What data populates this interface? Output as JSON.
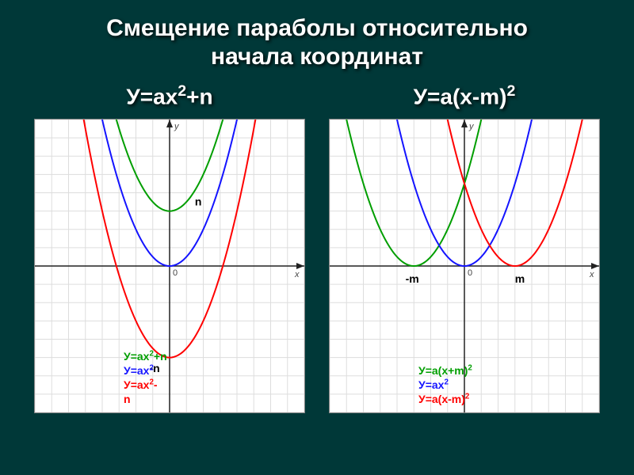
{
  "title_line1": "Смещение параболы относительно",
  "title_line2": "начала координат",
  "left": {
    "subtitle_html": "У=ах<sup>2</sup>+n",
    "chart": {
      "type": "parabola",
      "grid": {
        "xmin": -8,
        "xmax": 8,
        "ymin": -8,
        "ymax": 8,
        "step": 1,
        "grid_color": "#dddddd",
        "axis_color": "#222222",
        "bg": "#ffffff"
      },
      "curves": [
        {
          "color": "#009e00",
          "a": 0.5,
          "h": 0,
          "k": 3,
          "width": 2
        },
        {
          "color": "#1414ff",
          "a": 0.5,
          "h": 0,
          "k": 0,
          "width": 2
        },
        {
          "color": "#ff0000",
          "a": 0.5,
          "h": 0,
          "k": -5,
          "width": 2
        }
      ],
      "origin_label": "0",
      "axis_y_label": "y",
      "axis_x_label": "x",
      "point_labels": [
        {
          "text": "n",
          "ux": 1.5,
          "uy": 3.3,
          "color": "#000000",
          "fontsize": 14,
          "bold": true
        },
        {
          "text": "-n",
          "ux": -1.2,
          "uy": -5.8,
          "color": "#000000",
          "fontsize": 14,
          "bold": true
        }
      ],
      "legend": [
        {
          "html": "У=ах<sup>2</sup>+n",
          "color": "#009e00"
        },
        {
          "html": "У=ах<sup>2</sup>",
          "color": "#1414ff"
        },
        {
          "html": "У=ах<sup>2</sup>-",
          "color": "#ff0000"
        },
        {
          "html": "n",
          "color": "#ff0000"
        }
      ]
    }
  },
  "right": {
    "subtitle_html": "У=а(х-m)<sup>2</sup>",
    "chart": {
      "type": "parabola",
      "grid": {
        "xmin": -8,
        "xmax": 8,
        "ymin": -8,
        "ymax": 8,
        "step": 1,
        "grid_color": "#dddddd",
        "axis_color": "#222222",
        "bg": "#ffffff"
      },
      "curves": [
        {
          "color": "#009e00",
          "a": 0.5,
          "h": -3,
          "k": 0,
          "width": 2
        },
        {
          "color": "#1414ff",
          "a": 0.5,
          "h": 0,
          "k": 0,
          "width": 2
        },
        {
          "color": "#ff0000",
          "a": 0.5,
          "h": 3,
          "k": 0,
          "width": 2
        }
      ],
      "origin_label": "0",
      "axis_y_label": "y",
      "axis_x_label": "x",
      "point_labels": [
        {
          "text": "-m",
          "ux": -3.5,
          "uy": -0.9,
          "color": "#000000",
          "fontsize": 14,
          "bold": true
        },
        {
          "text": "m",
          "ux": 3.0,
          "uy": -0.9,
          "color": "#000000",
          "fontsize": 14,
          "bold": true
        }
      ],
      "legend": [
        {
          "html": "У=а(х+m)<sup>2</sup>",
          "color": "#009e00"
        },
        {
          "html": "У=ах<sup>2</sup>",
          "color": "#1414ff"
        },
        {
          "html": "У=а(х-m)<sup>2</sup>",
          "color": "#ff0000"
        }
      ]
    }
  }
}
